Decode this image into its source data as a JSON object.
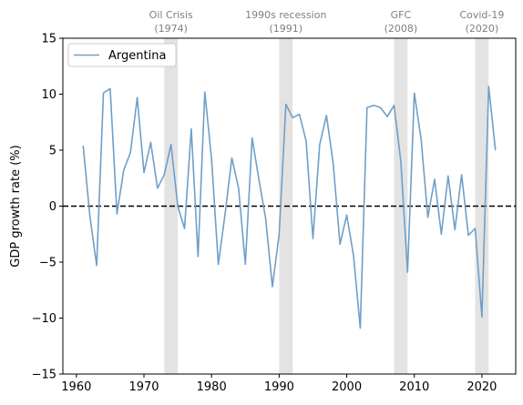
{
  "chart_data": {
    "type": "line",
    "title": "",
    "xlabel": "",
    "ylabel": "GDP growth rate (%)",
    "xlim": [
      1958,
      2025
    ],
    "ylim": [
      -15,
      15
    ],
    "xticks": [
      1960,
      1970,
      1980,
      1990,
      2000,
      2010,
      2020
    ],
    "yticks": [
      -15,
      -10,
      -5,
      0,
      5,
      10,
      15
    ],
    "ytick_labels": [
      "−15",
      "−10",
      "−5",
      "0",
      "5",
      "10",
      "15"
    ],
    "legend": {
      "position": "top-left"
    },
    "reference_line": {
      "y": 0,
      "style": "dashed",
      "color": "#000000"
    },
    "shaded_periods": [
      {
        "start": 1973,
        "end": 1975,
        "label_line1": "Oil Crisis",
        "label_line2": "(1974)"
      },
      {
        "start": 1990,
        "end": 1992,
        "label_line1": "1990s recession",
        "label_line2": "(1991)"
      },
      {
        "start": 2007,
        "end": 2009,
        "label_line1": "GFC",
        "label_line2": "(2008)"
      },
      {
        "start": 2019,
        "end": 2021,
        "label_line1": "Covid-19",
        "label_line2": "(2020)"
      }
    ],
    "series": [
      {
        "name": "Argentina",
        "color": "#6f9fc8",
        "x": [
          1961,
          1962,
          1963,
          1964,
          1965,
          1966,
          1967,
          1968,
          1969,
          1970,
          1971,
          1972,
          1973,
          1974,
          1975,
          1976,
          1977,
          1978,
          1979,
          1980,
          1981,
          1982,
          1983,
          1984,
          1985,
          1986,
          1987,
          1988,
          1989,
          1990,
          1991,
          1992,
          1993,
          1994,
          1995,
          1996,
          1997,
          1998,
          1999,
          2000,
          2001,
          2002,
          2003,
          2004,
          2005,
          2006,
          2007,
          2008,
          2009,
          2010,
          2011,
          2012,
          2013,
          2014,
          2015,
          2016,
          2017,
          2018,
          2019,
          2020,
          2021,
          2022
        ],
        "values": [
          5.4,
          -0.9,
          -5.3,
          10.1,
          10.5,
          -0.7,
          3.2,
          4.8,
          9.7,
          3.0,
          5.7,
          1.6,
          2.8,
          5.5,
          0.0,
          -2.0,
          6.9,
          -4.5,
          10.2,
          4.2,
          -5.2,
          -0.7,
          4.3,
          1.6,
          -5.2,
          6.1,
          2.4,
          -1.1,
          -7.2,
          -2.5,
          9.1,
          7.9,
          8.2,
          5.8,
          -2.9,
          5.5,
          8.1,
          3.8,
          -3.4,
          -0.8,
          -4.4,
          -10.9,
          8.8,
          9.0,
          8.8,
          8.0,
          9.0,
          4.0,
          -5.9,
          10.1,
          6.0,
          -1.0,
          2.4,
          -2.5,
          2.7,
          -2.1,
          2.8,
          -2.6,
          -2.0,
          -9.9,
          10.7,
          5.0
        ]
      }
    ]
  }
}
